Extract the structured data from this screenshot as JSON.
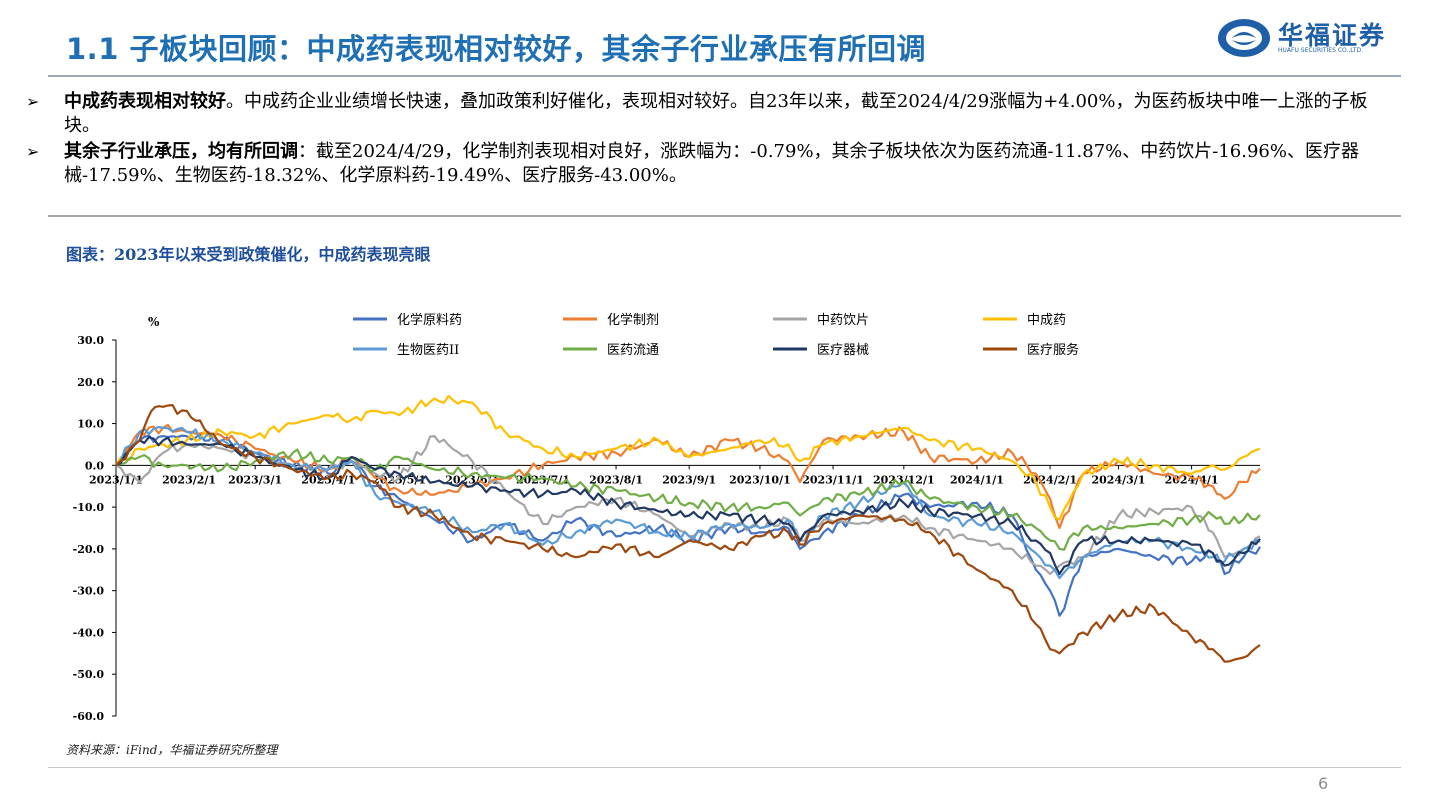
{
  "header": {
    "title": "1.1 子板块回顾：中成药表现相对较好，其余子行业承压有所回调",
    "logo_text": "华福证券",
    "logo_sub": "HUAFU SECURITIES CO.,LTD."
  },
  "bullets": [
    {
      "head": "中成药表现相对较好",
      "body": "。中成药企业业绩增长快速，叠加政策利好催化，表现相对较好。自23年以来，截至2024/4/29涨幅为+4.00%，为医药板块中唯一上涨的子板块。"
    },
    {
      "head": "其余子行业承压，均有所回调",
      "body": "：截至2024/4/29，化学制剂表现相对良好，涨跌幅为：-0.79%，其余子板块依次为医药流通-11.87%、中药饮片-16.96%、医疗器械-17.59%、生物医药-18.32%、化学原料药-19.49%、医疗服务-43.00%。"
    }
  ],
  "figure_title": "图表：2023年以来受到政策催化，中成药表现亮眼",
  "source": "资料来源：iFind，华福证券研究所整理",
  "page_number": "6",
  "chart_data": {
    "type": "line",
    "ylabel": "%",
    "ylim": [
      -60,
      30
    ],
    "yticks": [
      "30.0",
      "20.0",
      "10.0",
      "0.0",
      "-10.0",
      "-20.0",
      "-30.0",
      "-40.0",
      "-50.0",
      "-60.0"
    ],
    "ytick_values": [
      30,
      20,
      10,
      0,
      -10,
      -20,
      -30,
      -40,
      -50,
      -60
    ],
    "x_range_days": [
      0,
      485
    ],
    "xticks": [
      "2023/1/1",
      "2023/2/1",
      "2023/3/1",
      "2023/4/1",
      "2023/5/1",
      "2023/6/1",
      "2023/7/1",
      "2023/8/1",
      "2023/9/1",
      "2023/10/1",
      "2023/11/1",
      "2023/12/1",
      "2024/1/1",
      "2024/2/1",
      "2024/3/1",
      "2024/4/1"
    ],
    "xtick_days": [
      0,
      31,
      59,
      90,
      120,
      151,
      181,
      212,
      243,
      273,
      304,
      334,
      365,
      396,
      425,
      456
    ],
    "legend": "top",
    "series": [
      {
        "name": "化学原料药",
        "color": "#4472C4",
        "x": [
          0,
          10,
          20,
          30,
          45,
          59,
          75,
          90,
          100,
          110,
          120,
          135,
          151,
          165,
          181,
          195,
          212,
          230,
          243,
          260,
          273,
          285,
          290,
          300,
          315,
          334,
          345,
          365,
          380,
          390,
          396,
          400,
          410,
          425,
          440,
          456,
          465,
          470,
          478,
          485
        ],
        "y": [
          0,
          6,
          7,
          7,
          6,
          3,
          0,
          -2,
          1,
          -5,
          -8,
          -13,
          -18,
          -14,
          -18,
          -13,
          -17,
          -15,
          -18,
          -15,
          -16,
          -15,
          -20,
          -16,
          -12,
          -7,
          -10,
          -9,
          -12,
          -25,
          -30,
          -36,
          -22,
          -20,
          -22,
          -23,
          -21,
          -26,
          -22,
          -19.49
        ]
      },
      {
        "name": "化学制剂",
        "color": "#ED7D31",
        "x": [
          0,
          10,
          20,
          30,
          45,
          59,
          75,
          90,
          100,
          110,
          120,
          135,
          151,
          165,
          181,
          195,
          212,
          230,
          243,
          260,
          273,
          285,
          290,
          300,
          315,
          334,
          345,
          365,
          380,
          390,
          396,
          400,
          410,
          425,
          440,
          456,
          465,
          470,
          478,
          485
        ],
        "y": [
          0,
          8,
          9,
          8,
          7,
          4,
          1,
          -1,
          2,
          -3,
          -6,
          -7,
          -5,
          -3,
          0,
          2,
          3,
          6,
          2,
          6,
          4,
          1,
          -4,
          6,
          7,
          8,
          2,
          1,
          3,
          -2,
          -8,
          -15,
          -2,
          1,
          -2,
          -3,
          -5,
          -8,
          -4,
          -0.79
        ]
      },
      {
        "name": "中药饮片",
        "color": "#A5A5A5",
        "x": [
          0,
          10,
          20,
          30,
          45,
          59,
          75,
          90,
          100,
          110,
          120,
          135,
          151,
          165,
          181,
          195,
          212,
          230,
          243,
          260,
          273,
          285,
          290,
          300,
          315,
          334,
          345,
          365,
          380,
          390,
          396,
          400,
          410,
          425,
          440,
          456,
          465,
          470,
          478,
          485
        ],
        "y": [
          0,
          -4,
          3,
          5,
          4,
          2,
          0,
          -1,
          1,
          -2,
          -3,
          7,
          1,
          -6,
          -14,
          -10,
          -8,
          -12,
          -17,
          -14,
          -15,
          -13,
          -18,
          -13,
          -14,
          -12,
          -15,
          -18,
          -20,
          -24,
          -26,
          -24,
          -22,
          -12,
          -11,
          -10,
          -16,
          -22,
          -20,
          -16.96
        ]
      },
      {
        "name": "中成药",
        "color": "#FFC000",
        "x": [
          0,
          10,
          20,
          30,
          45,
          59,
          75,
          90,
          100,
          110,
          120,
          135,
          151,
          165,
          181,
          195,
          212,
          230,
          243,
          260,
          273,
          285,
          290,
          300,
          315,
          334,
          345,
          365,
          380,
          390,
          396,
          400,
          410,
          425,
          440,
          456,
          465,
          470,
          478,
          485
        ],
        "y": [
          0,
          4,
          5,
          6,
          8,
          7,
          10,
          12,
          11,
          13,
          12,
          16,
          15,
          8,
          4,
          2,
          4,
          6,
          2,
          4,
          6,
          5,
          1,
          5,
          7,
          9,
          6,
          4,
          1,
          -4,
          -10,
          -13,
          -2,
          1,
          0,
          -2,
          0,
          -1,
          2,
          4
        ]
      },
      {
        "name": "生物医药II",
        "color": "#5B9BD5",
        "x": [
          0,
          10,
          20,
          30,
          45,
          59,
          75,
          90,
          100,
          110,
          120,
          135,
          151,
          165,
          181,
          195,
          212,
          230,
          243,
          260,
          273,
          285,
          290,
          300,
          315,
          334,
          345,
          365,
          380,
          390,
          396,
          400,
          410,
          425,
          440,
          456,
          465,
          470,
          478,
          485
        ],
        "y": [
          0,
          8,
          9,
          8,
          6,
          3,
          0,
          -1,
          1,
          -7,
          -9,
          -11,
          -16,
          -14,
          -19,
          -16,
          -13,
          -16,
          -17,
          -14,
          -15,
          -13,
          -18,
          -12,
          -9,
          -4,
          -12,
          -14,
          -16,
          -21,
          -24,
          -27,
          -22,
          -18,
          -18,
          -20,
          -22,
          -23,
          -20,
          -18.32
        ]
      },
      {
        "name": "医药流通",
        "color": "#70AD47",
        "x": [
          0,
          10,
          20,
          30,
          45,
          59,
          75,
          90,
          100,
          110,
          120,
          135,
          151,
          165,
          181,
          195,
          212,
          230,
          243,
          260,
          273,
          285,
          290,
          300,
          315,
          334,
          345,
          365,
          380,
          390,
          396,
          400,
          410,
          425,
          440,
          456,
          465,
          470,
          478,
          485
        ],
        "y": [
          0,
          2,
          0,
          0,
          -1,
          1,
          3,
          1,
          2,
          -1,
          2,
          -1,
          -2,
          -3,
          -3,
          -5,
          -6,
          -8,
          -9,
          -10,
          -10,
          -9,
          -12,
          -8,
          -7,
          -4,
          -8,
          -10,
          -12,
          -15,
          -18,
          -20,
          -15,
          -15,
          -14,
          -13,
          -12,
          -14,
          -13,
          -11.87
        ]
      },
      {
        "name": "医疗器械",
        "color": "#203864",
        "x": [
          0,
          10,
          20,
          30,
          45,
          59,
          75,
          90,
          100,
          110,
          120,
          135,
          151,
          165,
          181,
          195,
          212,
          230,
          243,
          260,
          273,
          285,
          290,
          300,
          315,
          334,
          345,
          365,
          380,
          390,
          396,
          400,
          410,
          425,
          440,
          456,
          465,
          470,
          478,
          485
        ],
        "y": [
          0,
          6,
          6,
          5,
          5,
          2,
          -1,
          -3,
          2,
          -1,
          -2,
          -4,
          -5,
          -6,
          -7,
          -6,
          -9,
          -11,
          -12,
          -12,
          -13,
          -14,
          -18,
          -12,
          -11,
          -9,
          -11,
          -12,
          -14,
          -18,
          -21,
          -26,
          -18,
          -18,
          -18,
          -19,
          -21,
          -24,
          -21,
          -17.59
        ]
      },
      {
        "name": "医疗服务",
        "color": "#9E480E",
        "x": [
          0,
          10,
          15,
          20,
          30,
          45,
          59,
          75,
          90,
          100,
          110,
          120,
          135,
          151,
          165,
          181,
          195,
          212,
          230,
          243,
          260,
          273,
          285,
          290,
          300,
          315,
          334,
          345,
          365,
          380,
          390,
          396,
          400,
          410,
          425,
          440,
          456,
          465,
          470,
          478,
          485
        ],
        "y": [
          0,
          6,
          13,
          14,
          13,
          5,
          2,
          -1,
          -3,
          -2,
          -4,
          -10,
          -12,
          -17,
          -18,
          -20,
          -22,
          -19,
          -22,
          -18,
          -20,
          -17,
          -16,
          -19,
          -14,
          -12,
          -13,
          -16,
          -25,
          -30,
          -38,
          -44,
          -45,
          -40,
          -36,
          -34,
          -41,
          -44,
          -47,
          -46,
          -43
        ]
      }
    ]
  }
}
